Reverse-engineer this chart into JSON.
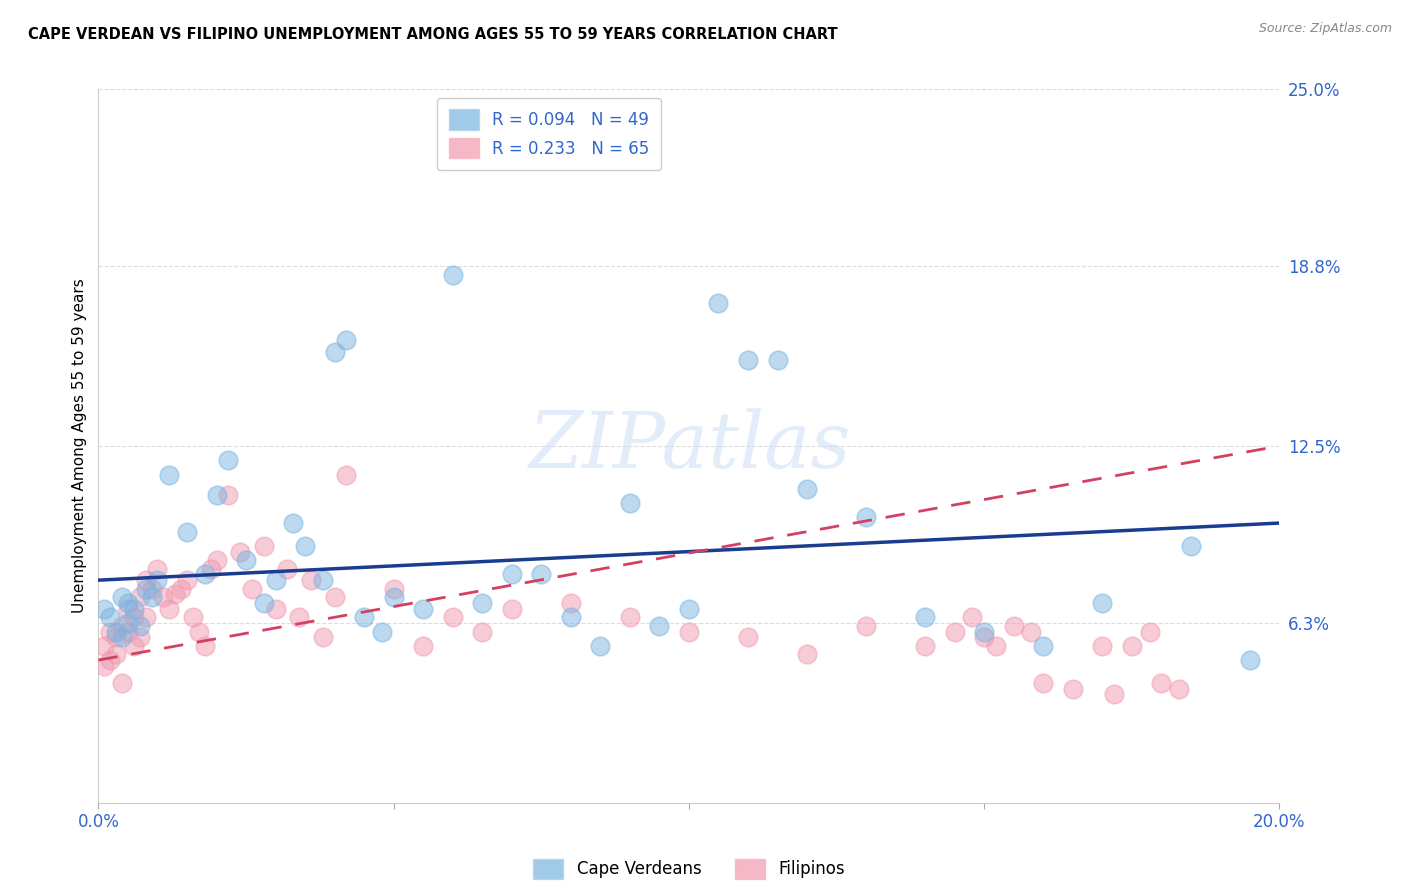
{
  "title": "CAPE VERDEAN VS FILIPINO UNEMPLOYMENT AMONG AGES 55 TO 59 YEARS CORRELATION CHART",
  "source": "Source: ZipAtlas.com",
  "ylabel": "Unemployment Among Ages 55 to 59 years",
  "xlim": [
    0.0,
    0.2
  ],
  "ylim": [
    0.0,
    0.25
  ],
  "xticks": [
    0.0,
    0.05,
    0.1,
    0.15,
    0.2
  ],
  "xticklabels": [
    "0.0%",
    "",
    "",
    "",
    "20.0%"
  ],
  "ytick_positions": [
    0.0,
    0.063,
    0.125,
    0.188,
    0.25
  ],
  "ytick_labels": [
    "",
    "6.3%",
    "12.5%",
    "18.8%",
    "25.0%"
  ],
  "watermark_text": "ZIPatlas",
  "legend_top": [
    {
      "label": "R = 0.094   N = 49",
      "color": "#a8c8e8"
    },
    {
      "label": "R = 0.233   N = 65",
      "color": "#f4b0c0"
    }
  ],
  "legend_bottom": [
    "Cape Verdeans",
    "Filipinos"
  ],
  "cv_x": [
    0.001,
    0.002,
    0.003,
    0.004,
    0.004,
    0.005,
    0.005,
    0.006,
    0.007,
    0.008,
    0.009,
    0.01,
    0.012,
    0.015,
    0.018,
    0.02,
    0.022,
    0.025,
    0.028,
    0.03,
    0.033,
    0.035,
    0.038,
    0.04,
    0.042,
    0.045,
    0.048,
    0.05,
    0.055,
    0.06,
    0.065,
    0.07,
    0.075,
    0.08,
    0.085,
    0.09,
    0.095,
    0.1,
    0.105,
    0.11,
    0.115,
    0.12,
    0.13,
    0.14,
    0.15,
    0.16,
    0.17,
    0.185,
    0.195
  ],
  "cv_y": [
    0.068,
    0.065,
    0.06,
    0.058,
    0.072,
    0.063,
    0.07,
    0.068,
    0.062,
    0.075,
    0.072,
    0.078,
    0.115,
    0.095,
    0.08,
    0.108,
    0.12,
    0.085,
    0.07,
    0.078,
    0.098,
    0.09,
    0.078,
    0.158,
    0.162,
    0.065,
    0.06,
    0.072,
    0.068,
    0.185,
    0.07,
    0.08,
    0.08,
    0.065,
    0.055,
    0.105,
    0.062,
    0.068,
    0.175,
    0.155,
    0.155,
    0.11,
    0.1,
    0.065,
    0.06,
    0.055,
    0.07,
    0.09,
    0.05
  ],
  "fil_x": [
    0.001,
    0.001,
    0.002,
    0.002,
    0.003,
    0.003,
    0.004,
    0.004,
    0.005,
    0.005,
    0.006,
    0.006,
    0.007,
    0.007,
    0.008,
    0.008,
    0.009,
    0.01,
    0.011,
    0.012,
    0.013,
    0.014,
    0.015,
    0.016,
    0.017,
    0.018,
    0.019,
    0.02,
    0.022,
    0.024,
    0.026,
    0.028,
    0.03,
    0.032,
    0.034,
    0.036,
    0.038,
    0.04,
    0.042,
    0.05,
    0.055,
    0.06,
    0.065,
    0.07,
    0.08,
    0.09,
    0.1,
    0.11,
    0.12,
    0.13,
    0.14,
    0.145,
    0.148,
    0.15,
    0.152,
    0.155,
    0.158,
    0.16,
    0.165,
    0.17,
    0.172,
    0.175,
    0.178,
    0.18,
    0.183
  ],
  "fil_y": [
    0.055,
    0.048,
    0.06,
    0.05,
    0.052,
    0.058,
    0.062,
    0.042,
    0.06,
    0.068,
    0.055,
    0.065,
    0.058,
    0.072,
    0.065,
    0.078,
    0.075,
    0.082,
    0.072,
    0.068,
    0.073,
    0.075,
    0.078,
    0.065,
    0.06,
    0.055,
    0.082,
    0.085,
    0.108,
    0.088,
    0.075,
    0.09,
    0.068,
    0.082,
    0.065,
    0.078,
    0.058,
    0.072,
    0.115,
    0.075,
    0.055,
    0.065,
    0.06,
    0.068,
    0.07,
    0.065,
    0.06,
    0.058,
    0.052,
    0.062,
    0.055,
    0.06,
    0.065,
    0.058,
    0.055,
    0.062,
    0.06,
    0.042,
    0.04,
    0.055,
    0.038,
    0.055,
    0.06,
    0.042,
    0.04
  ],
  "cv_trend_x": [
    0.0,
    0.2
  ],
  "cv_trend_y": [
    0.078,
    0.098
  ],
  "fil_trend_x": [
    0.0,
    0.2
  ],
  "fil_trend_y": [
    0.05,
    0.125
  ],
  "cv_color": "#7ab4e0",
  "fil_color": "#f09ab0",
  "cv_trend_color": "#1a3d8f",
  "fil_trend_color": "#d44060",
  "background_color": "#ffffff",
  "grid_color": "#dddddd"
}
